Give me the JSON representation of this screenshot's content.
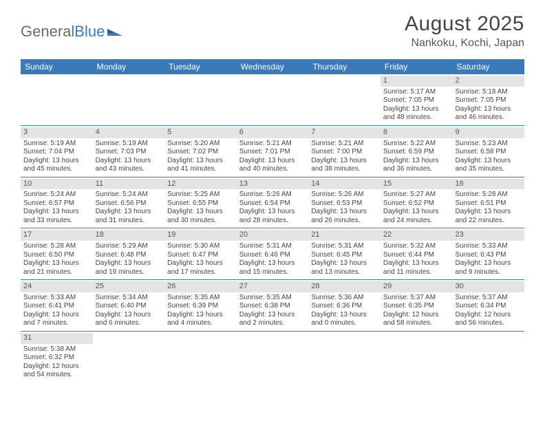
{
  "logo": {
    "part1": "General",
    "part2": "Blue"
  },
  "title": "August 2025",
  "location": "Nankoku, Kochi, Japan",
  "colors": {
    "header_bg": "#3a7ab8",
    "header_text": "#ffffff",
    "daynum_bg": "#e4e4e4",
    "text": "#444444",
    "row_border": "#3a7ab8",
    "page_bg": "#ffffff"
  },
  "dayHeaders": [
    "Sunday",
    "Monday",
    "Tuesday",
    "Wednesday",
    "Thursday",
    "Friday",
    "Saturday"
  ],
  "weeks": [
    [
      null,
      null,
      null,
      null,
      null,
      {
        "n": "1",
        "sr": "Sunrise: 5:17 AM",
        "ss": "Sunset: 7:05 PM",
        "dl1": "Daylight: 13 hours",
        "dl2": "and 48 minutes."
      },
      {
        "n": "2",
        "sr": "Sunrise: 5:18 AM",
        "ss": "Sunset: 7:05 PM",
        "dl1": "Daylight: 13 hours",
        "dl2": "and 46 minutes."
      }
    ],
    [
      {
        "n": "3",
        "sr": "Sunrise: 5:19 AM",
        "ss": "Sunset: 7:04 PM",
        "dl1": "Daylight: 13 hours",
        "dl2": "and 45 minutes."
      },
      {
        "n": "4",
        "sr": "Sunrise: 5:19 AM",
        "ss": "Sunset: 7:03 PM",
        "dl1": "Daylight: 13 hours",
        "dl2": "and 43 minutes."
      },
      {
        "n": "5",
        "sr": "Sunrise: 5:20 AM",
        "ss": "Sunset: 7:02 PM",
        "dl1": "Daylight: 13 hours",
        "dl2": "and 41 minutes."
      },
      {
        "n": "6",
        "sr": "Sunrise: 5:21 AM",
        "ss": "Sunset: 7:01 PM",
        "dl1": "Daylight: 13 hours",
        "dl2": "and 40 minutes."
      },
      {
        "n": "7",
        "sr": "Sunrise: 5:21 AM",
        "ss": "Sunset: 7:00 PM",
        "dl1": "Daylight: 13 hours",
        "dl2": "and 38 minutes."
      },
      {
        "n": "8",
        "sr": "Sunrise: 5:22 AM",
        "ss": "Sunset: 6:59 PM",
        "dl1": "Daylight: 13 hours",
        "dl2": "and 36 minutes."
      },
      {
        "n": "9",
        "sr": "Sunrise: 5:23 AM",
        "ss": "Sunset: 6:58 PM",
        "dl1": "Daylight: 13 hours",
        "dl2": "and 35 minutes."
      }
    ],
    [
      {
        "n": "10",
        "sr": "Sunrise: 5:24 AM",
        "ss": "Sunset: 6:57 PM",
        "dl1": "Daylight: 13 hours",
        "dl2": "and 33 minutes."
      },
      {
        "n": "11",
        "sr": "Sunrise: 5:24 AM",
        "ss": "Sunset: 6:56 PM",
        "dl1": "Daylight: 13 hours",
        "dl2": "and 31 minutes."
      },
      {
        "n": "12",
        "sr": "Sunrise: 5:25 AM",
        "ss": "Sunset: 6:55 PM",
        "dl1": "Daylight: 13 hours",
        "dl2": "and 30 minutes."
      },
      {
        "n": "13",
        "sr": "Sunrise: 5:26 AM",
        "ss": "Sunset: 6:54 PM",
        "dl1": "Daylight: 13 hours",
        "dl2": "and 28 minutes."
      },
      {
        "n": "14",
        "sr": "Sunrise: 5:26 AM",
        "ss": "Sunset: 6:53 PM",
        "dl1": "Daylight: 13 hours",
        "dl2": "and 26 minutes."
      },
      {
        "n": "15",
        "sr": "Sunrise: 5:27 AM",
        "ss": "Sunset: 6:52 PM",
        "dl1": "Daylight: 13 hours",
        "dl2": "and 24 minutes."
      },
      {
        "n": "16",
        "sr": "Sunrise: 5:28 AM",
        "ss": "Sunset: 6:51 PM",
        "dl1": "Daylight: 13 hours",
        "dl2": "and 22 minutes."
      }
    ],
    [
      {
        "n": "17",
        "sr": "Sunrise: 5:28 AM",
        "ss": "Sunset: 6:50 PM",
        "dl1": "Daylight: 13 hours",
        "dl2": "and 21 minutes."
      },
      {
        "n": "18",
        "sr": "Sunrise: 5:29 AM",
        "ss": "Sunset: 6:48 PM",
        "dl1": "Daylight: 13 hours",
        "dl2": "and 19 minutes."
      },
      {
        "n": "19",
        "sr": "Sunrise: 5:30 AM",
        "ss": "Sunset: 6:47 PM",
        "dl1": "Daylight: 13 hours",
        "dl2": "and 17 minutes."
      },
      {
        "n": "20",
        "sr": "Sunrise: 5:31 AM",
        "ss": "Sunset: 6:46 PM",
        "dl1": "Daylight: 13 hours",
        "dl2": "and 15 minutes."
      },
      {
        "n": "21",
        "sr": "Sunrise: 5:31 AM",
        "ss": "Sunset: 6:45 PM",
        "dl1": "Daylight: 13 hours",
        "dl2": "and 13 minutes."
      },
      {
        "n": "22",
        "sr": "Sunrise: 5:32 AM",
        "ss": "Sunset: 6:44 PM",
        "dl1": "Daylight: 13 hours",
        "dl2": "and 11 minutes."
      },
      {
        "n": "23",
        "sr": "Sunrise: 5:33 AM",
        "ss": "Sunset: 6:43 PM",
        "dl1": "Daylight: 13 hours",
        "dl2": "and 9 minutes."
      }
    ],
    [
      {
        "n": "24",
        "sr": "Sunrise: 5:33 AM",
        "ss": "Sunset: 6:41 PM",
        "dl1": "Daylight: 13 hours",
        "dl2": "and 7 minutes."
      },
      {
        "n": "25",
        "sr": "Sunrise: 5:34 AM",
        "ss": "Sunset: 6:40 PM",
        "dl1": "Daylight: 13 hours",
        "dl2": "and 6 minutes."
      },
      {
        "n": "26",
        "sr": "Sunrise: 5:35 AM",
        "ss": "Sunset: 6:39 PM",
        "dl1": "Daylight: 13 hours",
        "dl2": "and 4 minutes."
      },
      {
        "n": "27",
        "sr": "Sunrise: 5:35 AM",
        "ss": "Sunset: 6:38 PM",
        "dl1": "Daylight: 13 hours",
        "dl2": "and 2 minutes."
      },
      {
        "n": "28",
        "sr": "Sunrise: 5:36 AM",
        "ss": "Sunset: 6:36 PM",
        "dl1": "Daylight: 13 hours",
        "dl2": "and 0 minutes."
      },
      {
        "n": "29",
        "sr": "Sunrise: 5:37 AM",
        "ss": "Sunset: 6:35 PM",
        "dl1": "Daylight: 12 hours",
        "dl2": "and 58 minutes."
      },
      {
        "n": "30",
        "sr": "Sunrise: 5:37 AM",
        "ss": "Sunset: 6:34 PM",
        "dl1": "Daylight: 12 hours",
        "dl2": "and 56 minutes."
      }
    ],
    [
      {
        "n": "31",
        "sr": "Sunrise: 5:38 AM",
        "ss": "Sunset: 6:32 PM",
        "dl1": "Daylight: 12 hours",
        "dl2": "and 54 minutes."
      },
      null,
      null,
      null,
      null,
      null,
      null
    ]
  ]
}
